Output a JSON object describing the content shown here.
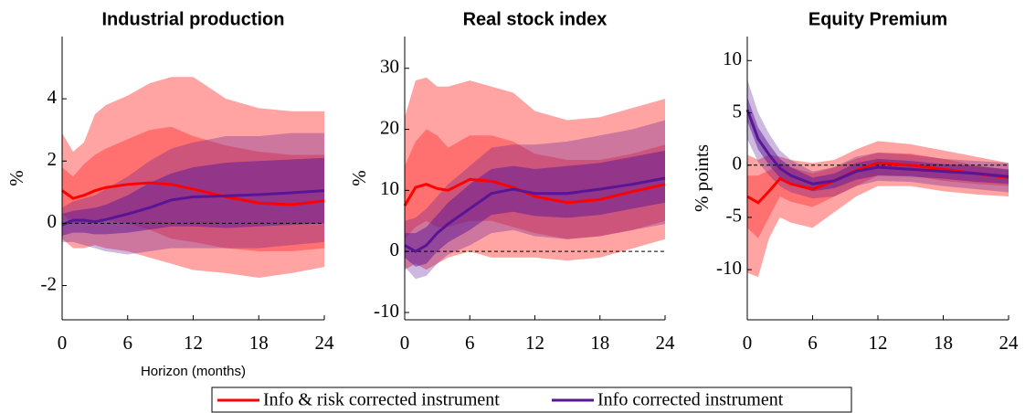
{
  "chart_data": [
    {
      "type": "line",
      "title": "Industrial production",
      "ylabel": "%",
      "xlabel": "Horizon (months)",
      "x": [
        0,
        1,
        2,
        3,
        4,
        6,
        8,
        10,
        12,
        15,
        18,
        21,
        24
      ],
      "xlim": [
        0,
        24
      ],
      "xticks": [
        0,
        6,
        12,
        18,
        24
      ],
      "ylim": [
        -3.1,
        6
      ],
      "yticks": [
        -2,
        0,
        2,
        4
      ],
      "reference_line": 0,
      "series": [
        {
          "name": "Info & risk corrected instrument",
          "color": "#ff0000",
          "values": [
            1.05,
            0.8,
            0.9,
            1.05,
            1.15,
            1.25,
            1.3,
            1.25,
            1.1,
            0.85,
            0.65,
            0.6,
            0.72
          ],
          "band_90": {
            "lower": [
              -0.5,
              -0.8,
              -0.8,
              -0.7,
              -0.8,
              -0.9,
              -1.1,
              -1.3,
              -1.5,
              -1.6,
              -1.75,
              -1.6,
              -1.4
            ],
            "upper": [
              2.9,
              2.3,
              2.6,
              3.5,
              3.8,
              4.1,
              4.5,
              4.7,
              4.7,
              4.0,
              3.7,
              3.6,
              3.6
            ]
          },
          "band_68": {
            "lower": [
              0.3,
              0,
              0,
              0.1,
              0.1,
              0,
              -0.2,
              -0.5,
              -0.6,
              -0.8,
              -0.9,
              -0.9,
              -0.8
            ],
            "upper": [
              1.8,
              1.5,
              1.9,
              2.2,
              2.4,
              2.7,
              3.0,
              3.1,
              2.8,
              2.5,
              2.3,
              2.2,
              2.2
            ]
          }
        },
        {
          "name": "Info corrected instrument",
          "color": "#5a1595",
          "values": [
            -0.05,
            0.1,
            0.1,
            0.05,
            0.12,
            0.3,
            0.5,
            0.75,
            0.85,
            0.88,
            0.92,
            0.98,
            1.05
          ],
          "band_90": {
            "lower": [
              -0.6,
              -0.6,
              -0.7,
              -0.8,
              -0.9,
              -1.0,
              -0.9,
              -0.8,
              -0.8,
              -0.8,
              -0.8,
              -0.7,
              -0.6
            ],
            "upper": [
              0.5,
              0.7,
              0.8,
              0.9,
              1.1,
              1.5,
              2.0,
              2.4,
              2.6,
              2.8,
              2.8,
              2.9,
              2.9
            ]
          },
          "band_68": {
            "lower": [
              -0.4,
              -0.3,
              -0.3,
              -0.35,
              -0.35,
              -0.3,
              -0.2,
              -0.1,
              -0.1,
              -0.15,
              -0.1,
              -0.05,
              0
            ],
            "upper": [
              0.3,
              0.4,
              0.45,
              0.5,
              0.6,
              0.9,
              1.3,
              1.6,
              1.8,
              1.95,
              2.0,
              2.05,
              2.1
            ]
          }
        }
      ]
    },
    {
      "type": "line",
      "title": "Real stock index",
      "ylabel": "%",
      "x": [
        0,
        1,
        2,
        3,
        4,
        6,
        8,
        10,
        12,
        15,
        18,
        21,
        24
      ],
      "xlim": [
        0,
        24
      ],
      "xticks": [
        0,
        6,
        12,
        18,
        24
      ],
      "ylim": [
        -11.2,
        35.2
      ],
      "yticks": [
        -10,
        0,
        10,
        20,
        30
      ],
      "reference_line": 0,
      "series": [
        {
          "name": "Info & risk corrected instrument",
          "color": "#ff0000",
          "values": [
            7.5,
            10.5,
            11,
            10.3,
            10,
            11.8,
            11.5,
            10.5,
            9,
            8,
            8.5,
            9.8,
            11
          ],
          "band_90": {
            "lower": [
              -3,
              -2,
              -3,
              -2,
              -1,
              0,
              -1,
              -1,
              -1,
              -1.5,
              -1,
              0.5,
              2
            ],
            "upper": [
              22,
              28,
              28.5,
              27,
              27,
              28,
              27,
              26,
              23,
              21.5,
              22,
              23.5,
              25
            ]
          },
          "band_68": {
            "lower": [
              2,
              4,
              5,
              4,
              4,
              5,
              5,
              4,
              3,
              2,
              2.5,
              3.5,
              5
            ],
            "upper": [
              14,
              18,
              20,
              19,
              17,
              19,
              19,
              18,
              16,
              15,
              15,
              16,
              17.5
            ]
          }
        },
        {
          "name": "Info corrected instrument",
          "color": "#5a1595",
          "values": [
            1,
            0,
            1,
            3,
            4.5,
            7,
            9.5,
            10.2,
            9.5,
            9.5,
            10.2,
            11,
            12
          ],
          "band_90": {
            "lower": [
              -2.5,
              -4.5,
              -4,
              -2,
              -0.5,
              1,
              3,
              3.5,
              2.5,
              2,
              2.5,
              3.5,
              4.5
            ],
            "upper": [
              5,
              5.5,
              7,
              9,
              11,
              14,
              17,
              17.5,
              17.5,
              18,
              19,
              20,
              21.5
            ]
          },
          "band_68": {
            "lower": [
              -1,
              -2.5,
              -2,
              0,
              1.5,
              3.5,
              6,
              6.5,
              5.8,
              5.5,
              6,
              7,
              8
            ],
            "upper": [
              3,
              3,
              4,
              6,
              8,
              11,
              13.5,
              14,
              13.5,
              14,
              14.5,
              15.5,
              16.5
            ]
          }
        }
      ]
    },
    {
      "type": "line",
      "title": "Equity Premium",
      "ylabel": "% points",
      "x": [
        0,
        1,
        2,
        3,
        4,
        6,
        8,
        10,
        12,
        15,
        18,
        21,
        24
      ],
      "xlim": [
        0,
        24
      ],
      "xticks": [
        0,
        6,
        12,
        18,
        24
      ],
      "ylim": [
        -14.8,
        12.3
      ],
      "yticks": [
        -10,
        -5,
        0,
        5,
        10
      ],
      "reference_line": 0,
      "series": [
        {
          "name": "Info & risk corrected instrument",
          "color": "#ff0000",
          "values": [
            -3,
            -3.6,
            -2.5,
            -1.3,
            -1.8,
            -2.3,
            -1.5,
            -0.5,
            0.2,
            0,
            -0.4,
            -0.8,
            -1.2
          ],
          "band_90": {
            "lower": [
              -10.3,
              -10.7,
              -7,
              -5,
              -5.5,
              -6,
              -4.5,
              -3,
              -2,
              -2,
              -2.5,
              -2.8,
              -3
            ],
            "upper": [
              1,
              0.5,
              1,
              0.8,
              0.5,
              0.2,
              0.5,
              1.5,
              2.3,
              2,
              1.4,
              0.8,
              0.2
            ]
          },
          "band_68": {
            "lower": [
              -6,
              -7,
              -5,
              -3,
              -3.5,
              -4,
              -3,
              -2,
              -1,
              -1,
              -1.5,
              -1.8,
              -2
            ],
            "upper": [
              -1,
              -1,
              -0.5,
              0.2,
              -0.2,
              -0.8,
              -0.2,
              0.6,
              1.2,
              1.1,
              0.6,
              0,
              -0.5
            ]
          }
        },
        {
          "name": "Info corrected instrument",
          "color": "#5a1595",
          "values": [
            5.3,
            2.5,
            1,
            -0.3,
            -1,
            -1.8,
            -1.5,
            -0.6,
            -0.2,
            -0.4,
            -0.6,
            -0.8,
            -1.1
          ],
          "band_90": {
            "lower": [
              2.5,
              0.3,
              -1,
              -2,
              -2.6,
              -3.2,
              -3,
              -2,
              -1.5,
              -1.6,
              -2,
              -2.3,
              -2.6
            ],
            "upper": [
              8.2,
              5,
              3,
              1.4,
              0.5,
              -0.6,
              -0.2,
              0.8,
              1.2,
              1,
              0.6,
              0.4,
              0.2
            ]
          },
          "band_68": {
            "lower": [
              4.2,
              1.5,
              0,
              -1.2,
              -1.8,
              -2.5,
              -2.2,
              -1.4,
              -1,
              -1.1,
              -1.3,
              -1.6,
              -1.8
            ],
            "upper": [
              6.5,
              3.6,
              2,
              0.6,
              -0.2,
              -1.2,
              -0.8,
              0.2,
              0.6,
              0.4,
              0.1,
              -0.1,
              -0.4
            ]
          }
        }
      ]
    }
  ]
}
